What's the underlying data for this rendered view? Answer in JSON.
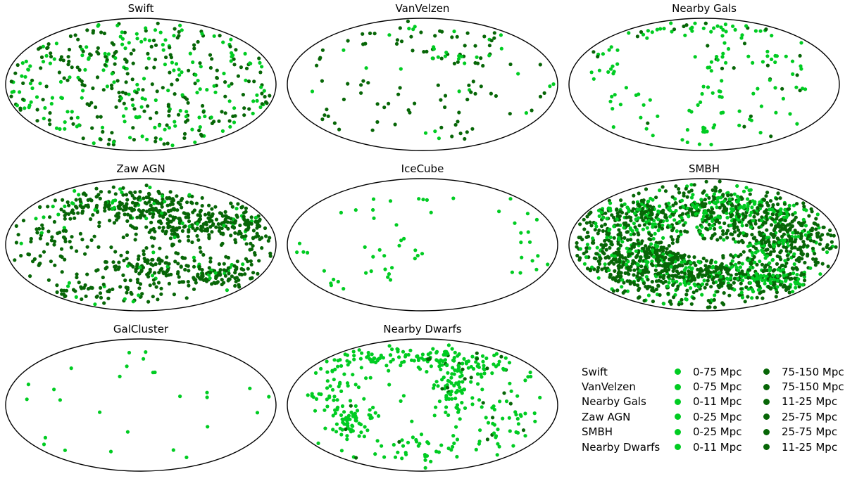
{
  "figure": {
    "background": "#ffffff",
    "outline_color": "#000000"
  },
  "colors": {
    "near": "#00cc22",
    "far": "#076607"
  },
  "chart_data": {
    "type": "scatter",
    "projection": "mollweide-sky",
    "grid": [
      3,
      3
    ],
    "legend_position": "bottom-right",
    "marker_radius_px": 2.6,
    "panels": [
      {
        "title": "Swift",
        "seed": 101,
        "clusters": [
          {
            "n": 405,
            "shape": "u",
            "far": 0.52
          }
        ]
      },
      {
        "title": "VanVelzen",
        "seed": 202,
        "clusters": [
          {
            "n": 96,
            "shape": "u",
            "far": 0.83
          },
          {
            "n": 22,
            "cx": 0.3,
            "cy": -0.5,
            "sx": 0.16,
            "sy": 0.14,
            "far": 0.5
          },
          {
            "n": 12,
            "cx": 0.0,
            "cy": -0.8,
            "sx": 0.15,
            "sy": 0.07,
            "far": 0.55
          }
        ]
      },
      {
        "title": "Nearby Gals",
        "seed": 303,
        "clusters": [
          {
            "n": 42,
            "cx": -0.05,
            "cy": -0.86,
            "sx": 0.5,
            "sy": 0.06,
            "far": 0.28
          },
          {
            "n": 14,
            "cx": 0.12,
            "cy": -0.45,
            "sx": 0.05,
            "sy": 0.16,
            "far": 0.1
          },
          {
            "n": 12,
            "cx": 0.07,
            "cy": 0.1,
            "sx": 0.05,
            "sy": 0.2,
            "far": 0.05
          },
          {
            "n": 16,
            "cx": -0.02,
            "cy": 0.6,
            "sx": 0.07,
            "sy": 0.22,
            "far": 0.05
          },
          {
            "n": 20,
            "cx": -0.72,
            "cy": -0.1,
            "sx": 0.1,
            "sy": 0.32,
            "far": 0.1
          },
          {
            "n": 12,
            "cx": -0.45,
            "cy": 0.35,
            "sx": 0.13,
            "sy": 0.18,
            "far": 0.08
          },
          {
            "n": 16,
            "cx": 0.45,
            "cy": -0.5,
            "sx": 0.15,
            "sy": 0.12,
            "far": 0.3
          },
          {
            "n": 18,
            "cx": 0.62,
            "cy": 0.05,
            "sx": 0.14,
            "sy": 0.25,
            "far": 0.12
          },
          {
            "n": 10,
            "cx": 0.32,
            "cy": 0.55,
            "sx": 0.15,
            "sy": 0.15,
            "far": 0.15
          }
        ]
      },
      {
        "title": "Zaw AGN",
        "seed": 404,
        "clusters": [
          {
            "n": 110,
            "cx": -0.35,
            "cy": -0.6,
            "sx": 0.3,
            "sy": 0.13,
            "far": 0.88
          },
          {
            "n": 90,
            "cx": 0.05,
            "cy": -0.66,
            "sx": 0.2,
            "sy": 0.12,
            "far": 0.9
          },
          {
            "n": 230,
            "cx": 0.42,
            "cy": -0.33,
            "sx": 0.26,
            "sy": 0.15,
            "far": 0.93
          },
          {
            "n": 40,
            "cx": 0.85,
            "cy": -0.2,
            "sx": 0.1,
            "sy": 0.2,
            "far": 0.95
          },
          {
            "n": 55,
            "cx": -0.72,
            "cy": 0.02,
            "sx": 0.16,
            "sy": 0.22,
            "far": 0.95
          },
          {
            "n": 130,
            "cx": 0.1,
            "cy": 0.35,
            "sx": 0.22,
            "sy": 0.15,
            "far": 0.93
          },
          {
            "n": 90,
            "cx": 0.6,
            "cy": 0.45,
            "sx": 0.16,
            "sy": 0.13,
            "far": 0.9
          },
          {
            "n": 55,
            "cx": -0.3,
            "cy": 0.75,
            "sx": 0.25,
            "sy": 0.1,
            "far": 0.9
          },
          {
            "n": 45,
            "shape": "u",
            "far": 0.9
          }
        ]
      },
      {
        "title": "IceCube",
        "seed": 505,
        "clusters": [
          {
            "n": 12,
            "cx": 0.05,
            "cy": -0.6,
            "sx": 0.3,
            "sy": 0.09,
            "far": 0
          },
          {
            "n": 16,
            "cx": -0.25,
            "cy": 0.12,
            "sx": 0.12,
            "sy": 0.24,
            "far": 0
          },
          {
            "n": 13,
            "cx": 0.78,
            "cy": 0.0,
            "sx": 0.07,
            "sy": 0.33,
            "far": 0
          },
          {
            "n": 8,
            "cx": -0.6,
            "cy": 0.55,
            "sx": 0.16,
            "sy": 0.14,
            "far": 0
          },
          {
            "n": 4,
            "cx": -0.88,
            "cy": 0.2,
            "sx": 0.06,
            "sy": 0.15,
            "far": 0
          },
          {
            "n": 3,
            "shape": "u",
            "far": 0
          }
        ]
      },
      {
        "title": "SMBH",
        "seed": 606,
        "avoid": [
          {
            "cx": 0.03,
            "cy": 0.05,
            "rx": 0.3,
            "ry": 0.13
          }
        ],
        "clusters": [
          {
            "n": 500,
            "shape": "u",
            "far": 0.72
          },
          {
            "n": 220,
            "cx": 0.55,
            "cy": -0.12,
            "sx": 0.2,
            "sy": 0.2,
            "far": 0.8
          },
          {
            "n": 150,
            "cx": -0.65,
            "cy": 0.1,
            "sx": 0.14,
            "sy": 0.25,
            "far": 0.78
          },
          {
            "n": 280,
            "cx": -0.1,
            "cy": 0.5,
            "sx": 0.35,
            "sy": 0.17,
            "far": 0.8
          },
          {
            "n": 120,
            "cx": -0.32,
            "cy": 0.18,
            "sx": 0.15,
            "sy": 0.12,
            "far": 0.8
          },
          {
            "n": 180,
            "cx": -0.45,
            "cy": -0.45,
            "sx": 0.25,
            "sy": 0.17,
            "far": 0.55
          },
          {
            "n": 200,
            "cx": 0.25,
            "cy": -0.55,
            "sx": 0.22,
            "sy": 0.13,
            "far": 0.5
          },
          {
            "n": 150,
            "cx": 0.5,
            "cy": 0.55,
            "sx": 0.18,
            "sy": 0.14,
            "far": 0.45
          }
        ]
      },
      {
        "title": "GalCluster",
        "seed": 707,
        "clusters": [
          {
            "n": 22,
            "shape": "u",
            "far": 0
          },
          {
            "n": 5,
            "cx": 0.0,
            "cy": -0.65,
            "sx": 0.13,
            "sy": 0.13,
            "far": 0
          }
        ]
      },
      {
        "title": "Nearby Dwarfs",
        "seed": 808,
        "clusters": [
          {
            "n": 115,
            "cx": -0.05,
            "cy": -0.74,
            "sx": 0.38,
            "sy": 0.1,
            "far": 0.08
          },
          {
            "n": 45,
            "cx": 0.45,
            "cy": -0.58,
            "sx": 0.2,
            "sy": 0.12,
            "far": 0.2
          },
          {
            "n": 60,
            "cx": 0.22,
            "cy": -0.22,
            "sx": 0.06,
            "sy": 0.22,
            "far": 0.05
          },
          {
            "n": 60,
            "cx": -0.55,
            "cy": 0.25,
            "sx": 0.1,
            "sy": 0.12,
            "far": 0.02
          },
          {
            "n": 40,
            "cx": -0.68,
            "cy": -0.25,
            "sx": 0.1,
            "sy": 0.2,
            "far": 0.08
          },
          {
            "n": 45,
            "cx": 0.6,
            "cy": 0.15,
            "sx": 0.2,
            "sy": 0.25,
            "far": 0.06
          },
          {
            "n": 45,
            "cx": 0.0,
            "cy": 0.65,
            "sx": 0.3,
            "sy": 0.13,
            "far": 0.04
          },
          {
            "n": 30,
            "shape": "u",
            "far": 0.03
          }
        ]
      }
    ],
    "legend": {
      "rows": [
        {
          "name": "Swift",
          "near": "0-75 Mpc",
          "far": "75-150 Mpc"
        },
        {
          "name": "VanVelzen",
          "near": "0-75 Mpc",
          "far": "75-150 Mpc"
        },
        {
          "name": "Nearby Gals",
          "near": "0-11 Mpc",
          "far": "11-25 Mpc"
        },
        {
          "name": "Zaw AGN",
          "near": "0-25 Mpc",
          "far": "25-75 Mpc"
        },
        {
          "name": "SMBH",
          "near": "0-25 Mpc",
          "far": "25-75 Mpc"
        },
        {
          "name": "Nearby Dwarfs",
          "near": "0-11 Mpc",
          "far": "11-25 Mpc"
        }
      ]
    }
  }
}
